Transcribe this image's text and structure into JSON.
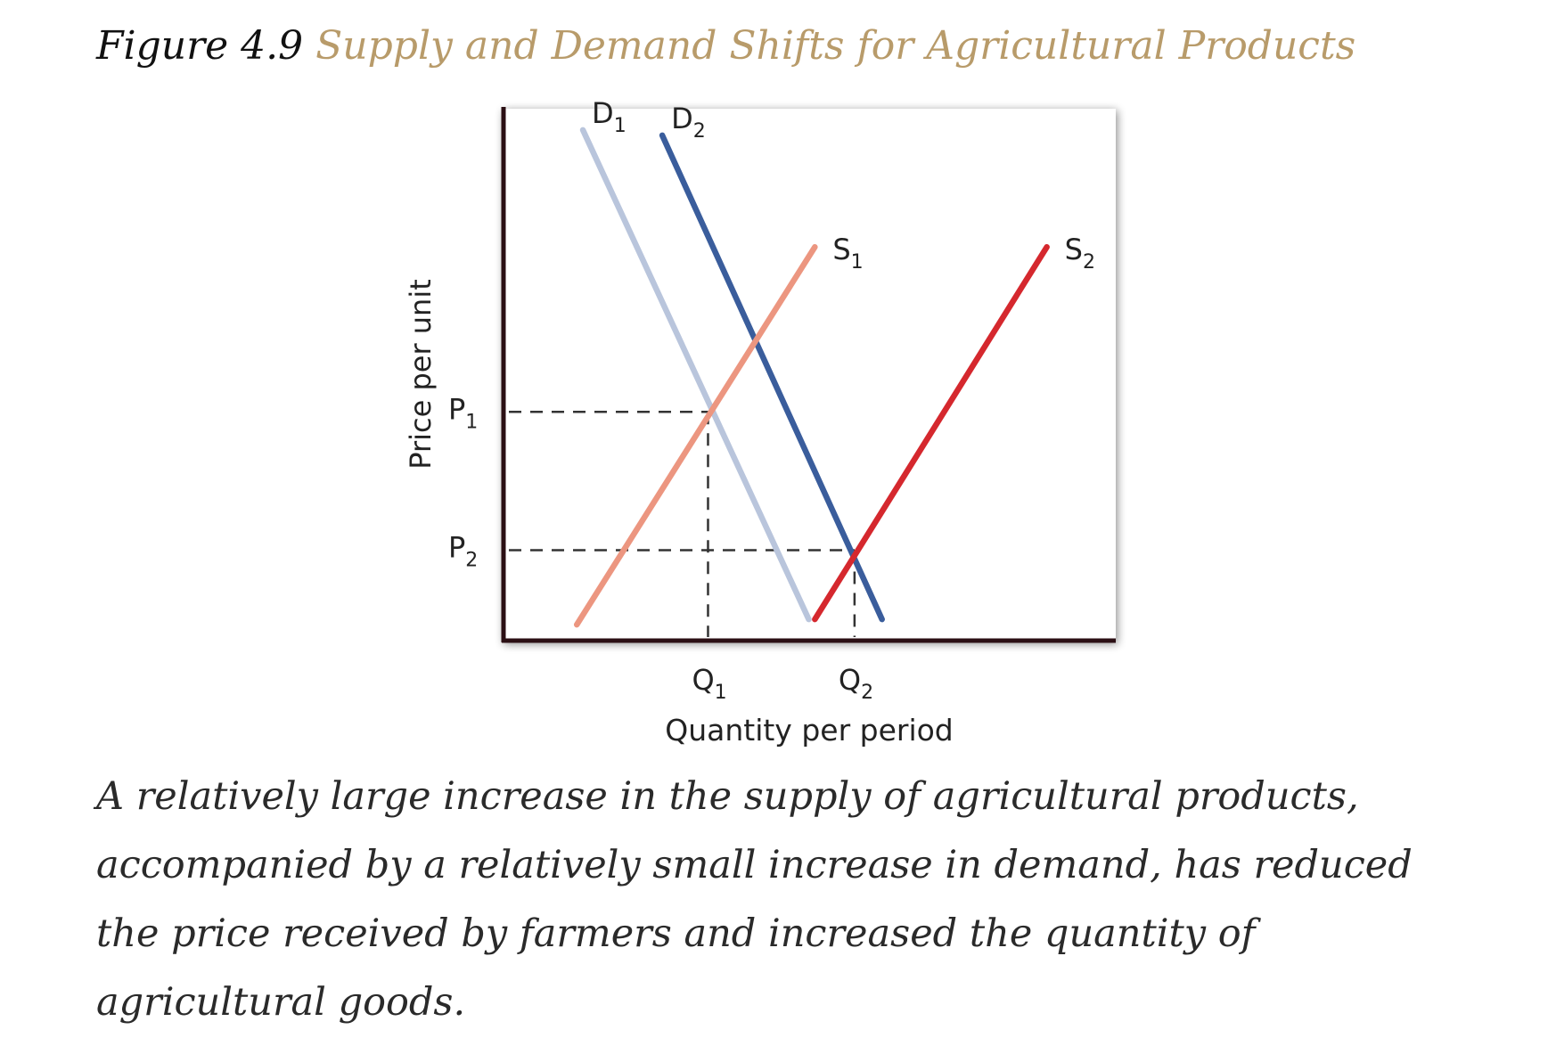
{
  "figure": {
    "number": "Figure 4.9",
    "title": "Supply and Demand Shifts for Agricultural Products",
    "caption": "A relatively large increase in the supply of agricultural products, accompanied by a relatively small increase in demand, has reduced the price received by farmers and increased the quantity of agricultural goods."
  },
  "colors": {
    "title": "#b89b6a",
    "d1": "#b9c5dc",
    "d2": "#3a5d9c",
    "s1": "#ec9680",
    "s2": "#d5282e",
    "axis": "#2b0f14"
  },
  "chart_data": {
    "type": "line",
    "xlabel": "Quantity per period",
    "ylabel": "Price per unit",
    "xlim": [
      0,
      100
    ],
    "ylim": [
      0,
      100
    ],
    "grid": false,
    "series": [
      {
        "name": "D",
        "sub": "1",
        "color": "#b9c5dc",
        "x": [
          13,
          50
        ],
        "y": [
          96,
          4
        ]
      },
      {
        "name": "D",
        "sub": "2",
        "color": "#3a5d9c",
        "x": [
          26,
          62
        ],
        "y": [
          95,
          4
        ]
      },
      {
        "name": "S",
        "sub": "1",
        "color": "#ec9680",
        "x": [
          12,
          51
        ],
        "y": [
          3,
          74
        ]
      },
      {
        "name": "S",
        "sub": "2",
        "color": "#d5282e",
        "x": [
          51,
          89
        ],
        "y": [
          4,
          74
        ]
      }
    ],
    "equilibria": [
      {
        "price_label": "P",
        "price_sub": "1",
        "quantity_label": "Q",
        "quantity_sub": "1",
        "x": 33.5,
        "y": 43
      },
      {
        "price_label": "P",
        "price_sub": "2",
        "quantity_label": "Q",
        "quantity_sub": "2",
        "x": 57.5,
        "y": 17
      }
    ]
  }
}
